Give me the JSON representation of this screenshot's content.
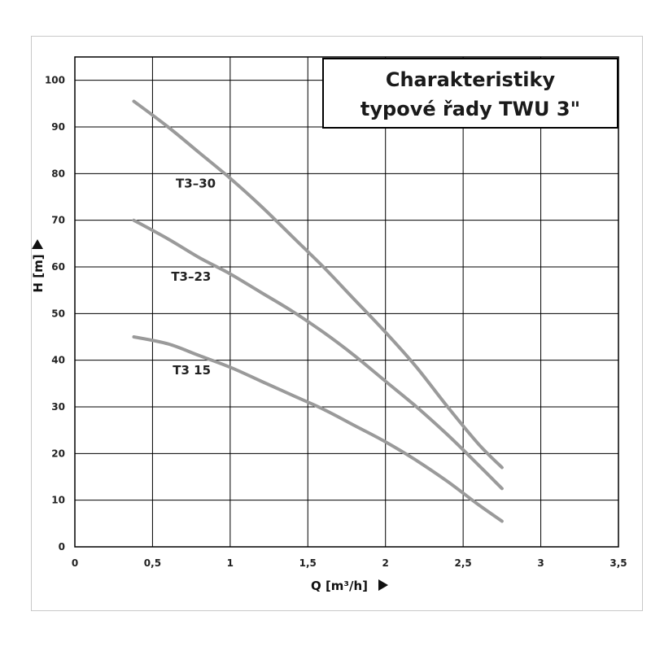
{
  "chart_data": {
    "type": "line",
    "title_lines": [
      "Charakteristiky",
      "typové řady TWU 3\""
    ],
    "xlabel": "Q [m³/h]",
    "ylabel": "H [m]",
    "xlim": [
      0,
      3.5
    ],
    "ylim": [
      0,
      105
    ],
    "x_ticks": [
      "0",
      "0,5",
      "1",
      "1,5",
      "2",
      "2,5",
      "3",
      "3,5"
    ],
    "x_tick_values": [
      0,
      0.5,
      1,
      1.5,
      2,
      2.5,
      3,
      3.5
    ],
    "y_ticks": [
      "0",
      "10",
      "20",
      "30",
      "40",
      "50",
      "60",
      "70",
      "80",
      "90",
      "100"
    ],
    "y_tick_values": [
      0,
      10,
      20,
      30,
      40,
      50,
      60,
      70,
      80,
      90,
      100
    ],
    "grid": true,
    "colors": {
      "curve": "#9a9a9a",
      "grid": "#000000",
      "frame": "#000000"
    },
    "series": [
      {
        "name": "T3–30",
        "x": [
          0.38,
          0.6,
          0.8,
          1.0,
          1.2,
          1.4,
          1.6,
          1.8,
          2.0,
          2.2,
          2.4,
          2.6,
          2.75
        ],
        "y": [
          95.5,
          90,
          84.5,
          79,
          73,
          66.5,
          60,
          53,
          46,
          38.5,
          30,
          22,
          17
        ]
      },
      {
        "name": "T3–23",
        "x": [
          0.38,
          0.6,
          0.8,
          1.0,
          1.2,
          1.4,
          1.6,
          1.8,
          2.0,
          2.2,
          2.4,
          2.6,
          2.75
        ],
        "y": [
          70,
          66,
          62,
          58.5,
          54.5,
          50.5,
          46,
          41,
          35.5,
          30,
          24,
          17.5,
          12.5
        ]
      },
      {
        "name": "T3 15",
        "x": [
          0.38,
          0.6,
          0.8,
          1.0,
          1.2,
          1.4,
          1.6,
          1.8,
          2.0,
          2.2,
          2.4,
          2.6,
          2.75
        ],
        "y": [
          45,
          43.5,
          41,
          38.5,
          35.5,
          32.5,
          29.5,
          26,
          22.5,
          18.5,
          14,
          9,
          5.5
        ]
      }
    ],
    "series_label_positions_data": [
      {
        "x": 0.65,
        "y": 77
      },
      {
        "x": 0.62,
        "y": 57
      },
      {
        "x": 0.63,
        "y": 37
      }
    ]
  }
}
